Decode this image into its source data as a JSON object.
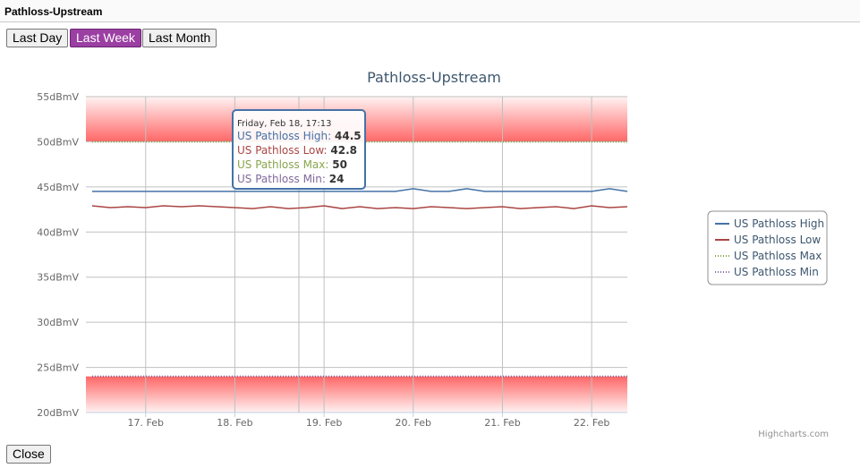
{
  "header": {
    "title": "Pathloss-Upstream"
  },
  "buttons": [
    {
      "label": "Last Day",
      "active": false
    },
    {
      "label": "Last Week",
      "active": true
    },
    {
      "label": "Last Month",
      "active": false
    }
  ],
  "close_button": "Close",
  "chart_data": {
    "type": "line",
    "title": "Pathloss-Upstream",
    "credit": "Highcharts.com",
    "legend": "right",
    "grid": true,
    "xlim": [
      16.33,
      22.4
    ],
    "xticks": [
      {
        "value": 17,
        "label": "17. Feb"
      },
      {
        "value": 18,
        "label": "18. Feb"
      },
      {
        "value": 19,
        "label": "19. Feb"
      },
      {
        "value": 20,
        "label": "20. Feb"
      },
      {
        "value": 21,
        "label": "21. Feb"
      },
      {
        "value": 22,
        "label": "22. Feb"
      }
    ],
    "ylim": [
      20,
      55
    ],
    "yticks": [
      {
        "value": 20,
        "label": "20dBmV"
      },
      {
        "value": 25,
        "label": "25dBmV"
      },
      {
        "value": 30,
        "label": "30dBmV"
      },
      {
        "value": 35,
        "label": "35dBmV"
      },
      {
        "value": 40,
        "label": "40dBmV"
      },
      {
        "value": 45,
        "label": "45dBmV"
      },
      {
        "value": 50,
        "label": "50dBmV"
      },
      {
        "value": 55,
        "label": "55dBmV"
      }
    ],
    "plot_bands": [
      {
        "from": 50,
        "to": 55,
        "color": "#ff6666"
      },
      {
        "from": 20,
        "to": 24,
        "color": "#ff6666"
      }
    ],
    "x": [
      16.4,
      16.6,
      16.8,
      17.0,
      17.2,
      17.4,
      17.6,
      17.8,
      18.0,
      18.2,
      18.4,
      18.6,
      18.8,
      19.0,
      19.2,
      19.4,
      19.6,
      19.8,
      20.0,
      20.2,
      20.4,
      20.6,
      20.8,
      21.0,
      21.2,
      21.4,
      21.6,
      21.8,
      22.0,
      22.2,
      22.4
    ],
    "series": [
      {
        "name": "US Pathloss High",
        "color": "#4572a7",
        "dash": "solid",
        "values": [
          44.5,
          44.5,
          44.5,
          44.5,
          44.5,
          44.5,
          44.5,
          44.5,
          44.5,
          44.5,
          44.5,
          44.5,
          44.5,
          44.5,
          44.5,
          44.5,
          44.5,
          44.5,
          44.8,
          44.5,
          44.5,
          44.8,
          44.5,
          44.5,
          44.5,
          44.5,
          44.5,
          44.5,
          44.5,
          44.8,
          44.5
        ]
      },
      {
        "name": "US Pathloss Low",
        "color": "#aa4643",
        "dash": "solid",
        "values": [
          42.9,
          42.7,
          42.8,
          42.7,
          42.9,
          42.8,
          42.9,
          42.8,
          42.7,
          42.6,
          42.8,
          42.6,
          42.7,
          42.9,
          42.6,
          42.8,
          42.6,
          42.7,
          42.6,
          42.8,
          42.7,
          42.6,
          42.7,
          42.8,
          42.6,
          42.7,
          42.8,
          42.6,
          42.9,
          42.7,
          42.8
        ]
      },
      {
        "name": "US Pathloss Max",
        "color": "#89a54e",
        "dash": "dot",
        "values": [
          50,
          50,
          50,
          50,
          50,
          50,
          50,
          50,
          50,
          50,
          50,
          50,
          50,
          50,
          50,
          50,
          50,
          50,
          50,
          50,
          50,
          50,
          50,
          50,
          50,
          50,
          50,
          50,
          50,
          50,
          50
        ]
      },
      {
        "name": "US Pathloss Min",
        "color": "#80699b",
        "dash": "dot",
        "values": [
          24,
          24,
          24,
          24,
          24,
          24,
          24,
          24,
          24,
          24,
          24,
          24,
          24,
          24,
          24,
          24,
          24,
          24,
          24,
          24,
          24,
          24,
          24,
          24,
          24,
          24,
          24,
          24,
          24,
          24,
          24
        ]
      }
    ],
    "tooltip": {
      "date": "Friday, Feb 18, 17:13",
      "values": [
        44.5,
        42.8,
        50,
        24
      ]
    }
  }
}
